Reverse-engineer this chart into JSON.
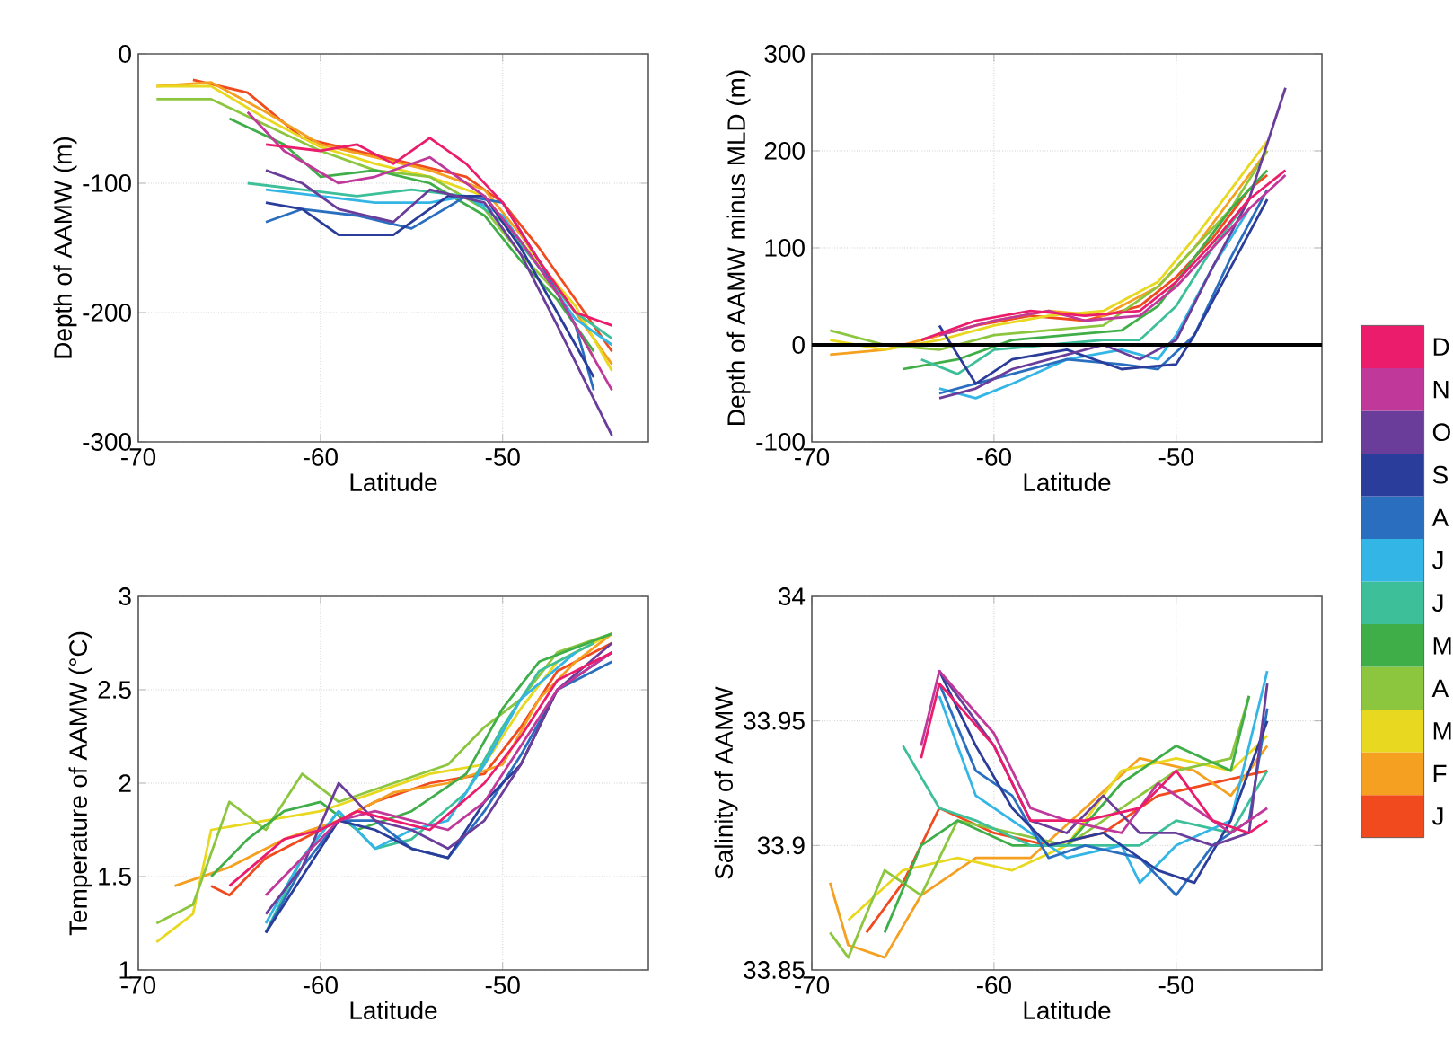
{
  "chart_data": [
    {
      "type": "line",
      "xlabel": "Latitude",
      "ylabel": "Depth of AAMW (m)",
      "xlim": [
        -70,
        -42
      ],
      "ylim": [
        -300,
        0
      ],
      "xticks": [
        -70,
        -60,
        -50
      ],
      "yticks": [
        -300,
        -200,
        -100,
        0
      ],
      "grid": true,
      "series": [
        {
          "color": "#f04a1e",
          "x": [
            -67,
            -64,
            -61,
            -58,
            -55,
            -52,
            -50,
            -48,
            -46,
            -44
          ],
          "values": [
            -20,
            -30,
            -65,
            -75,
            -85,
            -95,
            -115,
            -150,
            -190,
            -230
          ]
        },
        {
          "color": "#f5a020",
          "x": [
            -69,
            -66,
            -63,
            -60,
            -57,
            -54,
            -51,
            -49,
            -47,
            -44
          ],
          "values": [
            -25,
            -22,
            -45,
            -70,
            -80,
            -90,
            -105,
            -140,
            -180,
            -240
          ]
        },
        {
          "color": "#e8d820",
          "x": [
            -69,
            -66,
            -63,
            -60,
            -57,
            -54,
            -51,
            -49,
            -46,
            -44
          ],
          "values": [
            -25,
            -25,
            -50,
            -72,
            -85,
            -95,
            -110,
            -145,
            -195,
            -245
          ]
        },
        {
          "color": "#8cc63f",
          "x": [
            -69,
            -66,
            -63,
            -60,
            -57,
            -54,
            -51,
            -49,
            -47,
            -45
          ],
          "values": [
            -35,
            -35,
            -55,
            -75,
            -90,
            -95,
            -120,
            -155,
            -185,
            -235
          ]
        },
        {
          "color": "#3fae49",
          "x": [
            -65,
            -62,
            -60,
            -57,
            -54,
            -51,
            -49,
            -47,
            -45
          ],
          "values": [
            -50,
            -70,
            -95,
            -90,
            -100,
            -125,
            -160,
            -190,
            -230
          ]
        },
        {
          "color": "#3dbf9a",
          "x": [
            -64,
            -61,
            -58,
            -55,
            -52,
            -50,
            -48,
            -46,
            -44
          ],
          "values": [
            -100,
            -105,
            -110,
            -105,
            -110,
            -130,
            -165,
            -200,
            -220
          ]
        },
        {
          "color": "#33b5e5",
          "x": [
            -63,
            -60,
            -57,
            -54,
            -52,
            -50,
            -48,
            -46,
            -44
          ],
          "values": [
            -105,
            -110,
            -115,
            -115,
            -110,
            -125,
            -165,
            -205,
            -225
          ]
        },
        {
          "color": "#2a6fbf",
          "x": [
            -63,
            -61,
            -58,
            -55,
            -52,
            -50,
            -48,
            -46,
            -45
          ],
          "values": [
            -130,
            -120,
            -125,
            -135,
            -110,
            -115,
            -160,
            -210,
            -260
          ]
        },
        {
          "color": "#2b3d9a",
          "x": [
            -63,
            -61,
            -59,
            -56,
            -53,
            -51,
            -49,
            -47,
            -45
          ],
          "values": [
            -115,
            -120,
            -140,
            -140,
            -110,
            -110,
            -150,
            -200,
            -250
          ]
        },
        {
          "color": "#6a3d9a",
          "x": [
            -63,
            -61,
            -59,
            -56,
            -54,
            -51,
            -49,
            -47,
            -44
          ],
          "values": [
            -90,
            -100,
            -120,
            -130,
            -105,
            -115,
            -155,
            -210,
            -295
          ]
        },
        {
          "color": "#c0389a",
          "x": [
            -64,
            -62,
            -59,
            -57,
            -54,
            -51,
            -49,
            -47,
            -44
          ],
          "values": [
            -45,
            -75,
            -100,
            -95,
            -80,
            -110,
            -145,
            -185,
            -260
          ]
        },
        {
          "color": "#ec1c6c",
          "x": [
            -63,
            -60,
            -58,
            -56,
            -54,
            -52,
            -50,
            -48,
            -46,
            -44
          ],
          "values": [
            -70,
            -75,
            -70,
            -85,
            -65,
            -85,
            -115,
            -160,
            -200,
            -210
          ]
        }
      ]
    },
    {
      "type": "line",
      "xlabel": "Latitude",
      "ylabel": "Depth of AAMW minus MLD (m)",
      "xlim": [
        -70,
        -42
      ],
      "ylim": [
        -100,
        300
      ],
      "xticks": [
        -70,
        -60,
        -50
      ],
      "yticks": [
        -100,
        0,
        100,
        200,
        300
      ],
      "grid": true,
      "legend": "right",
      "ref_lines": [
        {
          "axis": "y",
          "value": 0,
          "color": "#000000"
        }
      ],
      "series": [
        {
          "name": "J",
          "color": "#f04a1e",
          "x": [
            -64,
            -61,
            -58,
            -55,
            -52,
            -50,
            -48,
            -46,
            -45
          ],
          "values": [
            5,
            20,
            30,
            25,
            40,
            70,
            110,
            160,
            175
          ]
        },
        {
          "name": "F",
          "color": "#f5a020",
          "x": [
            -69,
            -66,
            -63,
            -60,
            -57,
            -54,
            -51,
            -49,
            -47,
            -45
          ],
          "values": [
            -10,
            -5,
            10,
            25,
            35,
            30,
            60,
            100,
            150,
            200
          ]
        },
        {
          "name": "M",
          "color": "#e8d820",
          "x": [
            -69,
            -66,
            -63,
            -60,
            -57,
            -54,
            -51,
            -49,
            -47,
            -45
          ],
          "values": [
            5,
            -5,
            5,
            20,
            30,
            35,
            65,
            110,
            160,
            210
          ]
        },
        {
          "name": "A",
          "color": "#8cc63f",
          "x": [
            -69,
            -66,
            -63,
            -60,
            -57,
            -54,
            -51,
            -49,
            -47,
            -45
          ],
          "values": [
            15,
            0,
            -5,
            10,
            15,
            20,
            60,
            100,
            140,
            200
          ]
        },
        {
          "name": "M",
          "color": "#3fae49",
          "x": [
            -65,
            -62,
            -59,
            -56,
            -53,
            -51,
            -49,
            -47,
            -45
          ],
          "values": [
            -25,
            -15,
            5,
            10,
            15,
            40,
            90,
            140,
            180
          ]
        },
        {
          "name": "J",
          "color": "#3dbf9a",
          "x": [
            -64,
            -62,
            -60,
            -57,
            -54,
            -52,
            -50,
            -48,
            -46
          ],
          "values": [
            -15,
            -30,
            -5,
            0,
            5,
            5,
            40,
            100,
            150
          ]
        },
        {
          "name": "J",
          "color": "#33b5e5",
          "x": [
            -63,
            -61,
            -59,
            -56,
            -53,
            -51,
            -50,
            -48,
            -46
          ],
          "values": [
            -45,
            -55,
            -40,
            -15,
            -5,
            -15,
            10,
            80,
            140
          ]
        },
        {
          "name": "A",
          "color": "#2a6fbf",
          "x": [
            -63,
            -61,
            -59,
            -56,
            -53,
            -51,
            -49,
            -47,
            -45
          ],
          "values": [
            -50,
            -40,
            -30,
            -15,
            -20,
            -25,
            10,
            90,
            160
          ]
        },
        {
          "name": "S",
          "color": "#2b3d9a",
          "x": [
            -63,
            -62,
            -61,
            -59,
            -56,
            -53,
            -50,
            -49,
            -47,
            -45
          ],
          "values": [
            20,
            -10,
            -40,
            -15,
            -5,
            -25,
            -20,
            10,
            80,
            150
          ]
        },
        {
          "name": "O",
          "color": "#6a3d9a",
          "x": [
            -63,
            -61,
            -59,
            -56,
            -54,
            -52,
            -50,
            -48,
            -46,
            -44
          ],
          "values": [
            -55,
            -45,
            -25,
            -10,
            0,
            -15,
            5,
            80,
            150,
            265
          ]
        },
        {
          "name": "N",
          "color": "#c0389a",
          "x": [
            -63,
            -60,
            -57,
            -55,
            -52,
            -50,
            -48,
            -46,
            -44
          ],
          "values": [
            10,
            25,
            35,
            25,
            30,
            60,
            100,
            140,
            175
          ]
        },
        {
          "name": "D",
          "color": "#ec1c6c",
          "x": [
            -64,
            -61,
            -58,
            -55,
            -52,
            -50,
            -48,
            -46,
            -44
          ],
          "values": [
            5,
            25,
            35,
            30,
            35,
            65,
            105,
            150,
            180
          ]
        }
      ]
    },
    {
      "type": "line",
      "xlabel": "Latitude",
      "ylabel": "Temperature of AAMW (°C)",
      "xlim": [
        -70,
        -42
      ],
      "ylim": [
        1,
        3
      ],
      "xticks": [
        -70,
        -60,
        -50
      ],
      "yticks": [
        1,
        1.5,
        2,
        2.5,
        3
      ],
      "grid": true,
      "series": [
        {
          "color": "#f04a1e",
          "x": [
            -66,
            -65,
            -63,
            -60,
            -57,
            -54,
            -51,
            -49,
            -47,
            -44
          ],
          "values": [
            1.45,
            1.4,
            1.6,
            1.75,
            1.9,
            2.0,
            2.05,
            2.3,
            2.6,
            2.75
          ]
        },
        {
          "color": "#f5a020",
          "x": [
            -68,
            -65,
            -62,
            -59,
            -56,
            -53,
            -50,
            -48,
            -46,
            -44
          ],
          "values": [
            1.45,
            1.55,
            1.7,
            1.8,
            1.95,
            2.0,
            2.1,
            2.45,
            2.65,
            2.8
          ]
        },
        {
          "color": "#e8d820",
          "x": [
            -69,
            -67,
            -66,
            -63,
            -60,
            -57,
            -54,
            -51,
            -49,
            -47,
            -44
          ],
          "values": [
            1.15,
            1.3,
            1.75,
            1.8,
            1.85,
            1.95,
            2.05,
            2.1,
            2.4,
            2.65,
            2.8
          ]
        },
        {
          "color": "#8cc63f",
          "x": [
            -69,
            -67,
            -65,
            -63,
            -61,
            -59,
            -56,
            -53,
            -51,
            -49,
            -47,
            -44
          ],
          "values": [
            1.25,
            1.35,
            1.9,
            1.75,
            2.05,
            1.9,
            2.0,
            2.1,
            2.3,
            2.45,
            2.7,
            2.8
          ]
        },
        {
          "color": "#3fae49",
          "x": [
            -66,
            -64,
            -62,
            -60,
            -58,
            -55,
            -52,
            -50,
            -48,
            -44
          ],
          "values": [
            1.5,
            1.7,
            1.85,
            1.9,
            1.75,
            1.85,
            2.05,
            2.4,
            2.65,
            2.8
          ]
        },
        {
          "color": "#3dbf9a",
          "x": [
            -63,
            -61,
            -59,
            -57,
            -55,
            -52,
            -50,
            -48,
            -45
          ],
          "values": [
            1.2,
            1.6,
            1.85,
            1.65,
            1.7,
            1.95,
            2.3,
            2.6,
            2.75
          ]
        },
        {
          "color": "#33b5e5",
          "x": [
            -63,
            -61,
            -59,
            -57,
            -55,
            -53,
            -51,
            -49,
            -46
          ],
          "values": [
            1.25,
            1.6,
            1.85,
            1.65,
            1.75,
            1.8,
            2.1,
            2.45,
            2.7
          ]
        },
        {
          "color": "#2a6fbf",
          "x": [
            -63,
            -61,
            -59,
            -57,
            -55,
            -53,
            -51,
            -49,
            -47,
            -44
          ],
          "values": [
            1.2,
            1.55,
            1.8,
            1.8,
            1.65,
            1.6,
            1.85,
            2.15,
            2.5,
            2.65
          ]
        },
        {
          "color": "#2b3d9a",
          "x": [
            -63,
            -61,
            -59,
            -57,
            -55,
            -53,
            -51,
            -49,
            -47,
            -44
          ],
          "values": [
            1.2,
            1.5,
            1.8,
            1.75,
            1.65,
            1.6,
            1.9,
            2.1,
            2.5,
            2.7
          ]
        },
        {
          "color": "#6a3d9a",
          "x": [
            -63,
            -61,
            -59,
            -57,
            -55,
            -53,
            -51,
            -49,
            -47,
            -44
          ],
          "values": [
            1.3,
            1.55,
            2.0,
            1.8,
            1.75,
            1.65,
            1.8,
            2.1,
            2.5,
            2.75
          ]
        },
        {
          "color": "#c0389a",
          "x": [
            -63,
            -61,
            -59,
            -57,
            -55,
            -53,
            -51,
            -49,
            -47,
            -44
          ],
          "values": [
            1.4,
            1.6,
            1.8,
            1.85,
            1.8,
            1.75,
            1.9,
            2.2,
            2.5,
            2.7
          ]
        },
        {
          "color": "#ec1c6c",
          "x": [
            -65,
            -62,
            -60,
            -58,
            -56,
            -54,
            -51,
            -49,
            -47,
            -44
          ],
          "values": [
            1.45,
            1.7,
            1.75,
            1.85,
            1.8,
            1.75,
            2.0,
            2.25,
            2.55,
            2.7
          ]
        }
      ]
    },
    {
      "type": "line",
      "xlabel": "Latitude",
      "ylabel": "Salinity of AAMW",
      "xlim": [
        -70,
        -42
      ],
      "ylim": [
        33.85,
        34
      ],
      "xticks": [
        -70,
        -60,
        -50
      ],
      "yticks": [
        33.85,
        33.9,
        33.95,
        34
      ],
      "grid": true,
      "series": [
        {
          "color": "#f04a1e",
          "x": [
            -67,
            -65,
            -63,
            -60,
            -57,
            -54,
            -51,
            -48,
            -45
          ],
          "values": [
            33.865,
            33.885,
            33.915,
            33.905,
            33.9,
            33.905,
            33.92,
            33.925,
            33.93
          ]
        },
        {
          "color": "#f5a020",
          "x": [
            -69,
            -68,
            -66,
            -64,
            -61,
            -58,
            -55,
            -52,
            -49,
            -47,
            -45
          ],
          "values": [
            33.885,
            33.86,
            33.855,
            33.88,
            33.895,
            33.895,
            33.915,
            33.935,
            33.93,
            33.92,
            33.94
          ]
        },
        {
          "color": "#e8d820",
          "x": [
            -68,
            -65,
            -62,
            -59,
            -56,
            -53,
            -50,
            -47,
            -45
          ],
          "values": [
            33.87,
            33.89,
            33.895,
            33.89,
            33.9,
            33.93,
            33.935,
            33.93,
            33.944
          ]
        },
        {
          "color": "#8cc63f",
          "x": [
            -69,
            -68,
            -66,
            -64,
            -62,
            -59,
            -56,
            -53,
            -50,
            -47,
            -46
          ],
          "values": [
            33.865,
            33.855,
            33.89,
            33.88,
            33.91,
            33.905,
            33.9,
            33.915,
            33.93,
            33.935,
            33.96
          ]
        },
        {
          "color": "#3fae49",
          "x": [
            -66,
            -64,
            -62,
            -59,
            -56,
            -53,
            -50,
            -47,
            -46
          ],
          "values": [
            33.865,
            33.9,
            33.91,
            33.9,
            33.9,
            33.925,
            33.94,
            33.93,
            33.96
          ]
        },
        {
          "color": "#3dbf9a",
          "x": [
            -65,
            -63,
            -61,
            -58,
            -55,
            -52,
            -50,
            -47,
            -45
          ],
          "values": [
            33.94,
            33.915,
            33.91,
            33.9,
            33.9,
            33.9,
            33.91,
            33.905,
            33.93
          ]
        },
        {
          "color": "#33b5e5",
          "x": [
            -63,
            -61,
            -58,
            -56,
            -53,
            -52,
            -50,
            -47,
            -45
          ],
          "values": [
            33.96,
            33.92,
            33.905,
            33.895,
            33.9,
            33.885,
            33.9,
            33.91,
            33.97
          ]
        },
        {
          "color": "#2a6fbf",
          "x": [
            -63,
            -61,
            -59,
            -57,
            -55,
            -52,
            -50,
            -48,
            -46,
            -45
          ],
          "values": [
            33.965,
            33.93,
            33.92,
            33.895,
            33.9,
            33.895,
            33.88,
            33.9,
            33.91,
            33.955
          ]
        },
        {
          "color": "#2b3d9a",
          "x": [
            -63,
            -61,
            -59,
            -57,
            -54,
            -51,
            -49,
            -47,
            -45
          ],
          "values": [
            33.97,
            33.94,
            33.915,
            33.9,
            33.905,
            33.89,
            33.885,
            33.91,
            33.95
          ]
        },
        {
          "color": "#6a3d9a",
          "x": [
            -63,
            -60,
            -58,
            -56,
            -54,
            -52,
            -50,
            -48,
            -46,
            -45
          ],
          "values": [
            33.97,
            33.94,
            33.91,
            33.905,
            33.92,
            33.905,
            33.905,
            33.9,
            33.905,
            33.965
          ]
        },
        {
          "color": "#c0389a",
          "x": [
            -64,
            -63,
            -60,
            -58,
            -56,
            -53,
            -51,
            -49,
            -47,
            -45
          ],
          "values": [
            33.94,
            33.97,
            33.945,
            33.915,
            33.91,
            33.905,
            33.925,
            33.915,
            33.905,
            33.915
          ]
        },
        {
          "color": "#ec1c6c",
          "x": [
            -64,
            -63,
            -60,
            -58,
            -55,
            -52,
            -50,
            -48,
            -46,
            -45
          ],
          "values": [
            33.935,
            33.965,
            33.94,
            33.91,
            33.91,
            33.915,
            33.93,
            33.91,
            33.905,
            33.91
          ]
        }
      ]
    }
  ]
}
